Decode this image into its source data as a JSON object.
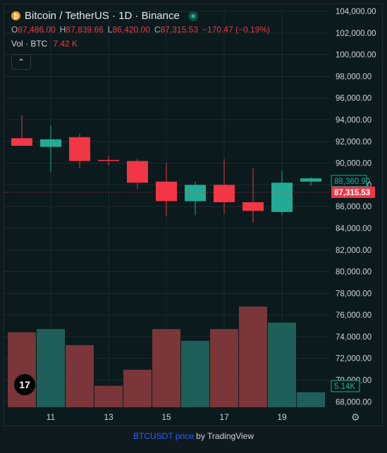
{
  "legend": {
    "symbol_icon": "bitcoin-icon",
    "title": "Bitcoin / TetherUS · 1D · Binance",
    "ohlc": [
      {
        "label": "O",
        "value": "87,486.00"
      },
      {
        "label": "H",
        "value": "87,839.66"
      },
      {
        "label": "L",
        "value": "86,420.00"
      },
      {
        "label": "C",
        "value": "87,315.53"
      }
    ],
    "change": "−170.47 (−0.19%)",
    "vol_label": "Vol · BTC",
    "vol_value": "7.42 K",
    "collapse_icon": "chevron-up-icon"
  },
  "footer": {
    "link_text": "BTCUSDT price",
    "by_text": "by TradingView"
  },
  "logo_text": "17",
  "colors": {
    "up": "#22ab94",
    "down": "#f23645",
    "up_volume": "#1e5f5a",
    "down_volume": "#7a3638",
    "background": "#0a1a1d",
    "grid": "#1a2a2e",
    "axis_text": "#d1d4dc"
  },
  "chart_data": {
    "type": "candlestick",
    "price_axis": {
      "ticks": [
        "104,000.00",
        "102,000.00",
        "100,000.00",
        "98,000.00",
        "96,000.00",
        "94,000.00",
        "92,000.00",
        "90,000.00",
        "88,000.00",
        "86,000.00",
        "84,000.00",
        "82,000.00",
        "80,000.00",
        "78,000.00",
        "76,000.00",
        "74,000.00",
        "72,000.00",
        "70,000.00",
        "68,000.00"
      ],
      "range": [
        67500,
        104200
      ]
    },
    "time_axis": {
      "ticks": [
        "11",
        "13",
        "15",
        "17",
        "19"
      ]
    },
    "candles": [
      {
        "day": 10,
        "open": 92300,
        "high": 94400,
        "low": 91600,
        "close": 91600,
        "volume": 74.0
      },
      {
        "day": 11,
        "open": 91500,
        "high": 93500,
        "low": 89200,
        "close": 92200,
        "volume": 74.6
      },
      {
        "day": 12,
        "open": 92400,
        "high": 92700,
        "low": 89500,
        "close": 90200,
        "volume": 71.6
      },
      {
        "day": 13,
        "open": 90300,
        "high": 90700,
        "low": 89800,
        "close": 90200,
        "volume": 64.0
      },
      {
        "day": 14,
        "open": 90200,
        "high": 90400,
        "low": 87600,
        "close": 88200,
        "volume": 67.0
      },
      {
        "day": 15,
        "open": 88300,
        "high": 90000,
        "low": 85100,
        "close": 86500,
        "volume": 74.6
      },
      {
        "day": 16,
        "open": 86500,
        "high": 88300,
        "low": 85200,
        "close": 88000,
        "volume": 72.4
      },
      {
        "day": 17,
        "open": 88000,
        "high": 90400,
        "low": 85300,
        "close": 86400,
        "volume": 74.6
      },
      {
        "day": 18,
        "open": 86400,
        "high": 89500,
        "low": 84500,
        "close": 85600,
        "volume": 78.8
      },
      {
        "day": 19,
        "open": 85500,
        "high": 89300,
        "low": 85200,
        "close": 88200,
        "volume": 75.8
      },
      {
        "day": 20,
        "open": 88300,
        "high": 88700,
        "low": 87900,
        "close": 88600,
        "volume": 62.8
      }
    ],
    "volume_scale_note": "",
    "current_price": {
      "label": "87,315.53",
      "value": 87315.53
    },
    "last_marker": {
      "label": "88,360.90",
      "value": 88360.9
    },
    "volume_label": "5.14K"
  }
}
